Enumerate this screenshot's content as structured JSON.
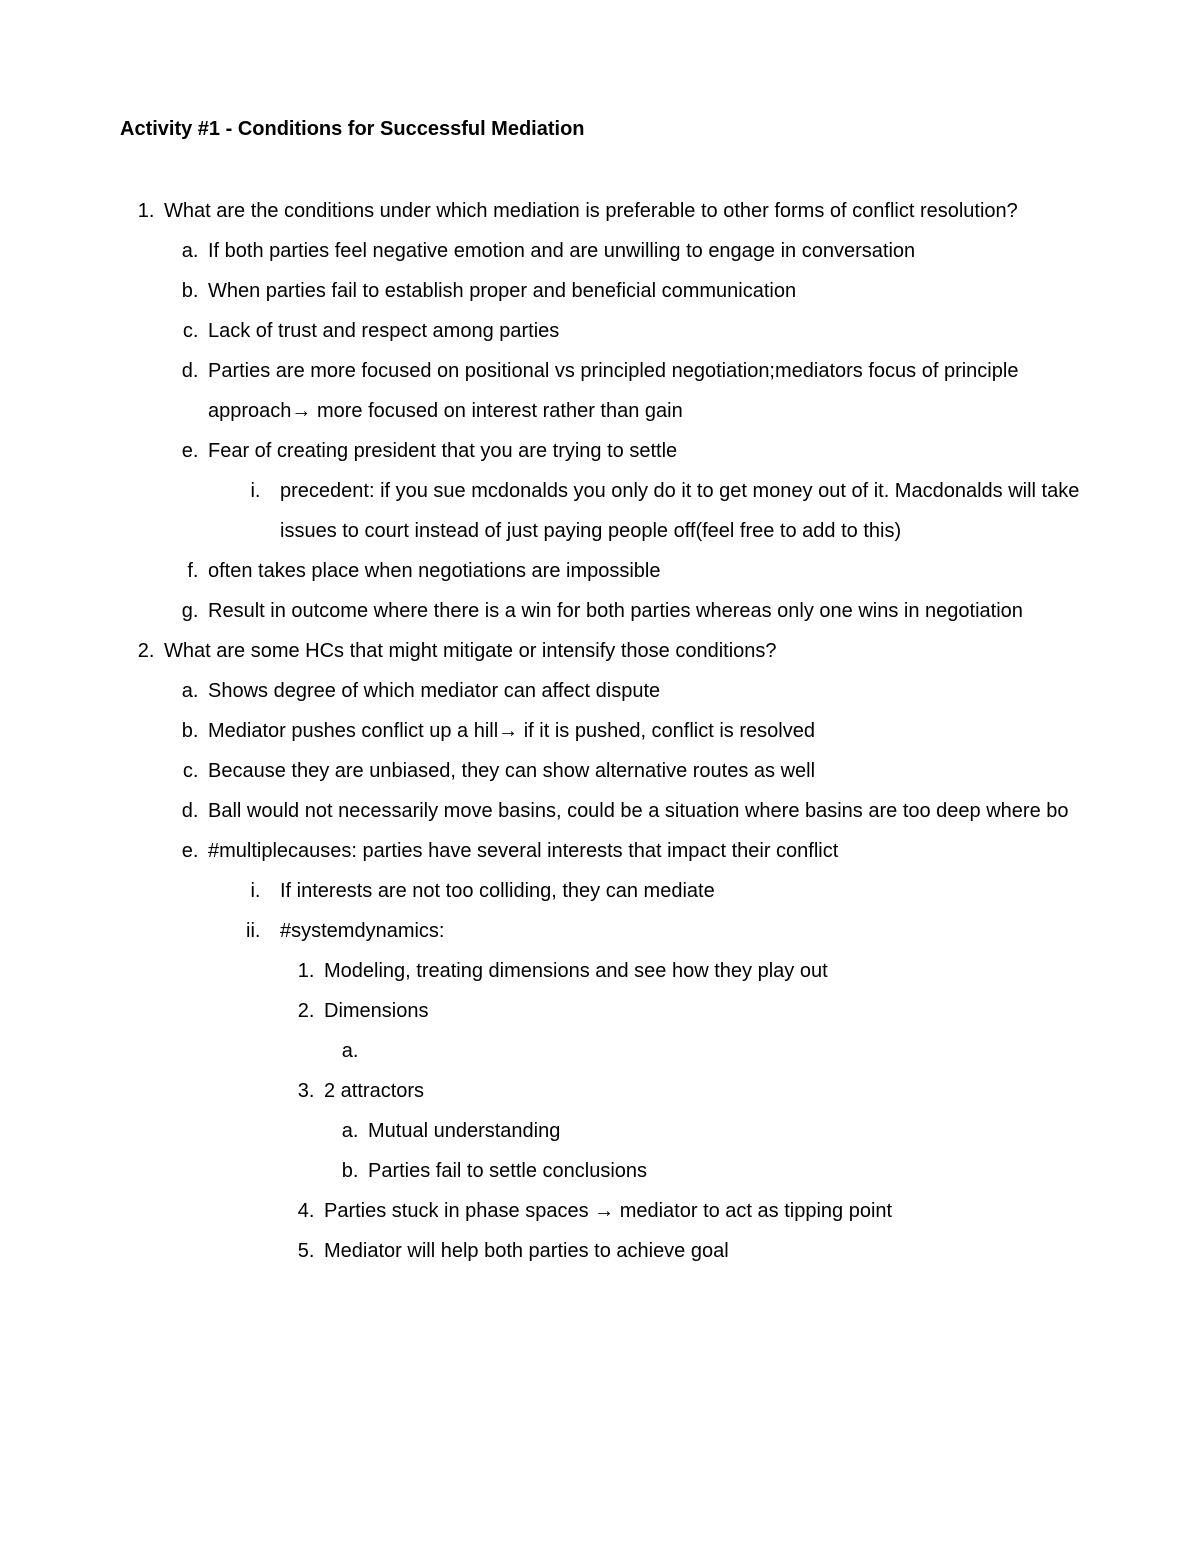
{
  "title": "Activity #1 - Conditions for Successful Mediation",
  "q1": {
    "text": "What are the conditions under which mediation is preferable to other forms of conflict resolution?",
    "a": "If both parties feel negative emotion and are unwilling to engage in conversation",
    "b": "When parties fail to establish proper and beneficial communication",
    "c": "Lack of trust and respect among parties",
    "d": "Parties are more focused on positional vs principled negotiation;mediators focus of principle approach→ more focused on interest rather than gain",
    "e": "Fear of creating president that you are trying to settle",
    "e_i": "precedent: if you sue mcdonalds you only do it to get money out of it. Macdonalds will take issues to court instead of just paying people off(feel free to add to this)",
    "f": "often takes place when negotiations are impossible",
    "g": "Result in outcome where there is a win for both parties whereas only one wins in negotiation"
  },
  "q2": {
    "text": "What are some HCs that might mitigate or intensify those conditions?",
    "a": "Shows degree of which mediator can affect dispute",
    "b": "Mediator pushes conflict up a hill→ if it is pushed, conflict is resolved",
    "c": "Because they are unbiased, they can show alternative routes as well",
    "d": "Ball would not necessarily move basins, could be a situation where basins are too deep where bo",
    "e": "#multiplecauses: parties have several interests that impact their conflict",
    "e_i": "If interests are not too colliding, they can mediate",
    "e_ii": "#systemdynamics:",
    "e_ii_1": "Modeling, treating dimensions and see how they play out",
    "e_ii_2": "Dimensions",
    "e_ii_2_a": "",
    "e_ii_3": "2 attractors",
    "e_ii_3_a": "Mutual understanding",
    "e_ii_3_b": "Parties fail to settle conclusions",
    "e_ii_4": "Parties stuck in phase spaces → mediator to act as tipping point",
    "e_ii_5": "Mediator will help both parties to achieve goal"
  }
}
